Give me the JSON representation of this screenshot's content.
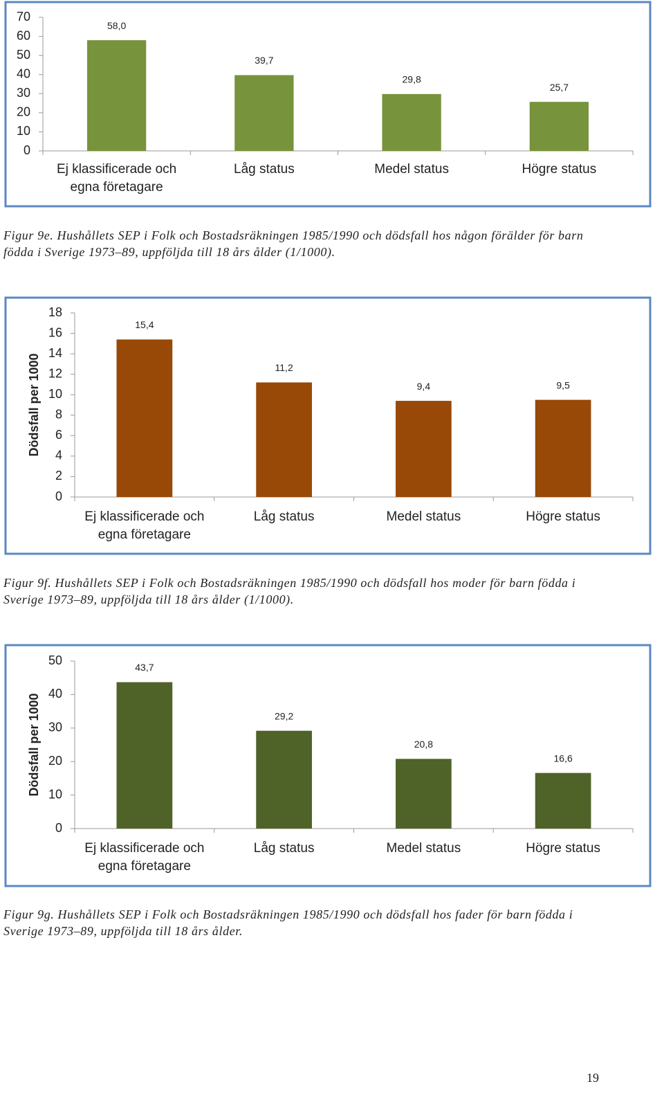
{
  "chart_data": [
    {
      "type": "bar",
      "categories": [
        "Ej klassificerade och egna företagare",
        "Låg status",
        "Medel status",
        "Högre status"
      ],
      "values": [
        58.0,
        39.7,
        29.8,
        25.7
      ],
      "value_labels": [
        "58,0",
        "39,7",
        "29,8",
        "25,7"
      ],
      "color": "#77933c",
      "ylim": [
        0,
        70
      ],
      "yticks": [
        0,
        10,
        20,
        30,
        40,
        50,
        60,
        70
      ],
      "caption": "Figur 9e. Hushållets SEP i Folk och Bostadsräkningen 1985/1990 och dödsfall hos någon förälder för barn födda i Sverige 1973–89, uppföljda till 18 års ålder (1/1000)."
    },
    {
      "type": "bar",
      "y_label": "Dödsfall per 1000",
      "categories": [
        "Ej klassificerade och egna företagare",
        "Låg status",
        "Medel status",
        "Högre status"
      ],
      "values": [
        15.4,
        11.2,
        9.4,
        9.5
      ],
      "value_labels": [
        "15,4",
        "11,2",
        "9,4",
        "9,5"
      ],
      "color": "#984807",
      "ylim": [
        0,
        18
      ],
      "yticks": [
        0,
        2,
        4,
        6,
        8,
        10,
        12,
        14,
        16,
        18
      ],
      "caption": "Figur 9f. Hushållets SEP i Folk och Bostadsräkningen 1985/1990 och dödsfall hos moder för barn födda i Sverige 1973–89, uppföljda till 18 års ålder (1/1000)."
    },
    {
      "type": "bar",
      "y_label": "Dödsfall per 1000",
      "categories": [
        "Ej klassificerade och egna företagare",
        "Låg status",
        "Medel status",
        "Högre status"
      ],
      "values": [
        43.7,
        29.2,
        20.8,
        16.6
      ],
      "value_labels": [
        "43,7",
        "29,2",
        "20,8",
        "16,6"
      ],
      "color": "#4f6228",
      "ylim": [
        0,
        50
      ],
      "yticks": [
        0,
        10,
        20,
        30,
        40,
        50
      ],
      "caption": "Figur 9g. Hushållets SEP i Folk och Bostadsräkningen 1985/1990 och dödsfall hos fader för barn födda i Sverige 1973–89, uppföljda till 18 års ålder."
    }
  ],
  "page_number": "19"
}
